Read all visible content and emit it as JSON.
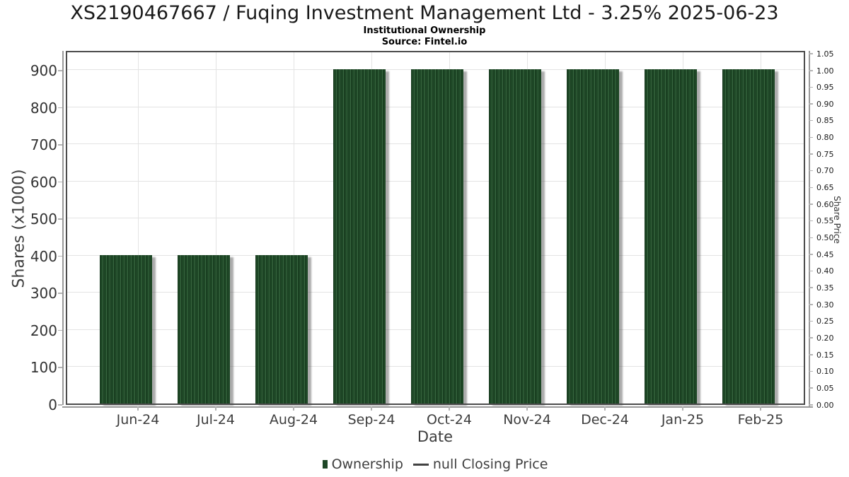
{
  "header": {
    "title": "XS2190467667 / Fuqing Investment Management Ltd - 3.25% 2025-06-23",
    "subtitle": "Institutional Ownership",
    "source": "Source: Fintel.io"
  },
  "chart_data": {
    "type": "bar",
    "title": "XS2190467667 / Fuqing Investment Management Ltd - 3.25% 2025-06-23",
    "subtitle": "Institutional Ownership",
    "source": "Source: Fintel.io",
    "categories": [
      "Jun-24",
      "Jul-24",
      "Aug-24",
      "Sep-24",
      "Oct-24",
      "Nov-24",
      "Dec-24",
      "Jan-25",
      "Feb-25"
    ],
    "series": [
      {
        "name": "Ownership",
        "type": "bar",
        "color": "#1e4726",
        "values": [
          400,
          400,
          400,
          900,
          900,
          900,
          900,
          900,
          900
        ]
      },
      {
        "name": "null Closing Price",
        "type": "line",
        "color": "#424242",
        "values": [
          null,
          null,
          null,
          null,
          null,
          null,
          null,
          null,
          null
        ]
      }
    ],
    "xlabel": "Date",
    "ylabel_left": "Shares (x1000)",
    "ylabel_right": "Share Price",
    "yticks_left": [
      0,
      100,
      200,
      300,
      400,
      500,
      600,
      700,
      800,
      900
    ],
    "yticks_right": [
      0.0,
      0.05,
      0.1,
      0.15,
      0.2,
      0.25,
      0.3,
      0.35,
      0.4,
      0.45,
      0.5,
      0.55,
      0.6,
      0.65,
      0.7,
      0.75,
      0.8,
      0.85,
      0.9,
      0.95,
      1.0,
      1.05
    ],
    "ylim_left": [
      0,
      945
    ],
    "ylim_right": [
      0,
      1.05
    ],
    "grid": true,
    "legend_position": "bottom",
    "colors": {
      "bar": "#1e4726",
      "bar_stripe_light": "#3a6a42",
      "bar_stripe_dark": "#16391d",
      "grid": "#e3e3e3",
      "plot_border": "#4c4c4c",
      "axis_spine": "#999999",
      "tick": "#b3b3b3",
      "title_text": "#1a1a1a",
      "label_text": "#3d3d3d"
    }
  }
}
